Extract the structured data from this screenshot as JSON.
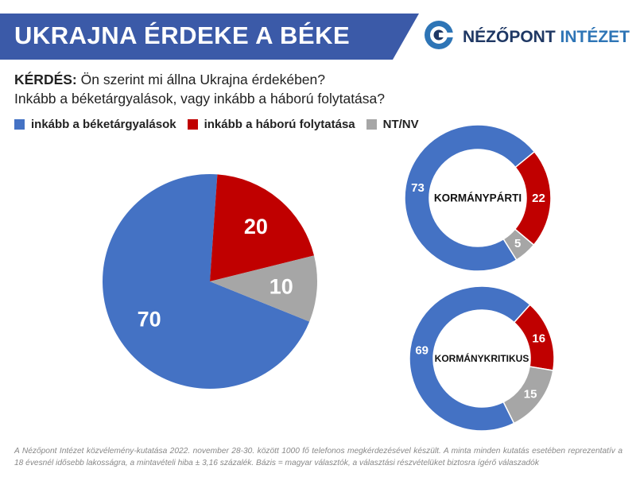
{
  "header": {
    "title": "UKRAJNA ÉRDEKE A BÉKE",
    "logo_word1": "NÉZŐPONT",
    "logo_word2": "INTÉZET"
  },
  "question": {
    "label": "KÉRDÉS:",
    "line1": " Ön szerint mi állna Ukrajna érdekében?",
    "line2": "Inkább a béketárgyalások, vagy inkább a háború folytatása?"
  },
  "colors": {
    "peace": "#4472c4",
    "war": "#c00000",
    "dk": "#a6a6a6",
    "banner": "#3b5aa8"
  },
  "chart_data": [
    {
      "type": "pie",
      "title": "",
      "categories": [
        "inkább a béketárgyalások",
        "inkább a háború folytatása",
        "NT/NV"
      ],
      "values": [
        70,
        20,
        10
      ],
      "legend": "top-left"
    },
    {
      "type": "pie",
      "title": "KORMÁNYPÁRTI",
      "categories": [
        "inkább a béketárgyalások",
        "inkább a háború folytatása",
        "NT/NV"
      ],
      "values": [
        73,
        22,
        5
      ]
    },
    {
      "type": "pie",
      "title": "KORMÁNYKRITIKUS",
      "categories": [
        "inkább a béketárgyalások",
        "inkább a háború folytatása",
        "NT/NV"
      ],
      "values": [
        69,
        16,
        15
      ]
    }
  ],
  "footnote": "A Nézőpont Intézet közvélemény-kutatása 2022. november 28-30. között 1000 fő telefonos megkérdezésével készült. A minta minden kutatás esetében reprezentatív a 18 évesnél idősebb lakosságra, a mintavételi hiba ± 3,16 százalék. Bázis = magyar választók, a választási részvételüket biztosra ígérő válaszadók"
}
